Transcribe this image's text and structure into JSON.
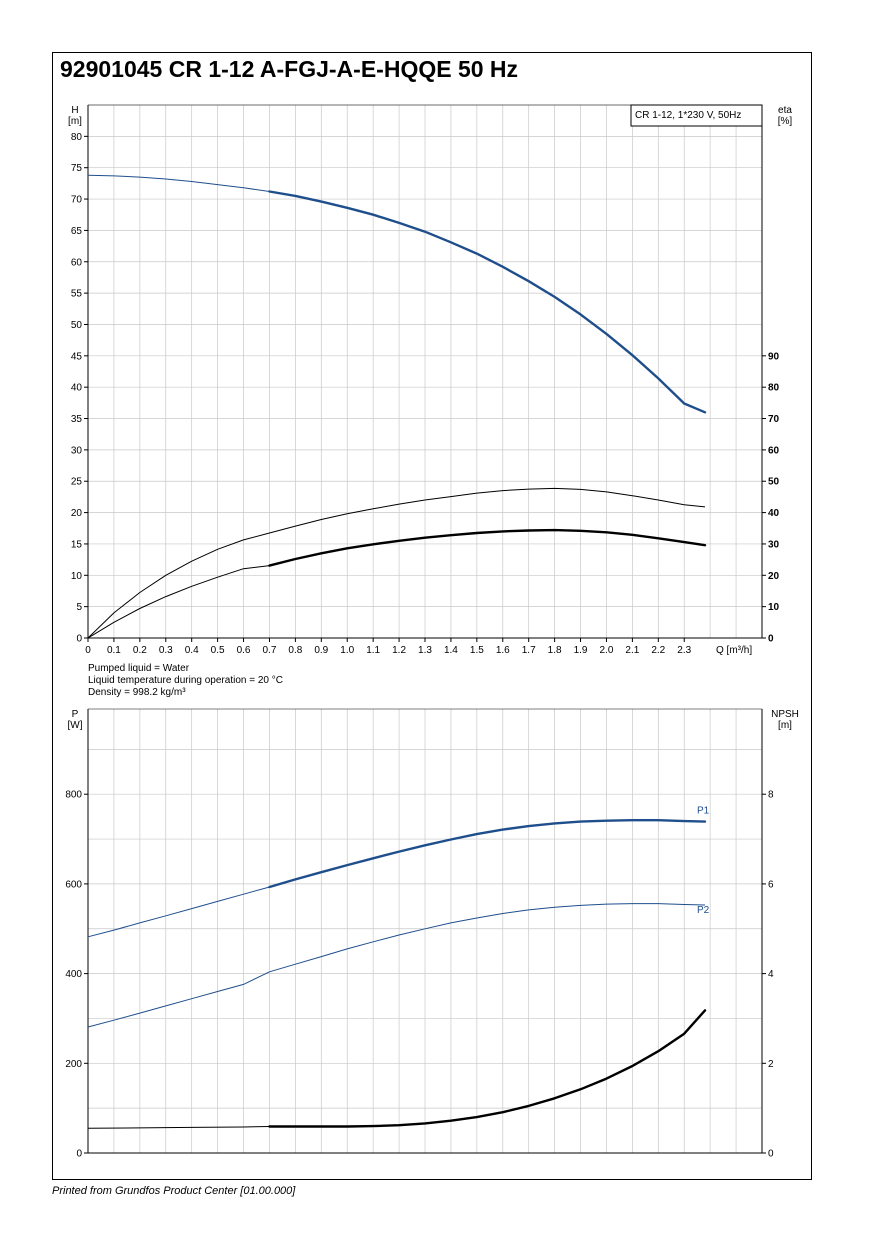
{
  "page": {
    "title": "92901045 CR 1-12 A-FGJ-A-E-HQQE 50 Hz",
    "footer": "Printed from Grundfos Product Center [01.00.000]",
    "conditions": [
      "Pumped liquid = Water",
      "Liquid temperature during operation = 20 °C",
      "Density = 998.2 kg/m³"
    ]
  },
  "colors": {
    "blue": "#1f4e8c",
    "black": "#000000",
    "grid": "#c8c8c8"
  },
  "chart_data": [
    {
      "type": "line",
      "legend": "CR 1-12, 1*230 V, 50Hz",
      "legend_position": "top-right",
      "grid": true,
      "x_label": "Q [m³/h]",
      "x_lim": [
        0,
        2.4
      ],
      "x_ticks": [
        "0",
        "0.1",
        "0.2",
        "0.3",
        "0.4",
        "0.5",
        "0.6",
        "0.7",
        "0.8",
        "0.9",
        "1.0",
        "1.1",
        "1.2",
        "1.3",
        "1.4",
        "1.5",
        "1.6",
        "1.7",
        "1.8",
        "1.9",
        "2.0",
        "2.1",
        "2.2",
        "2.3"
      ],
      "y_label_top": "H",
      "y_label_unit": "[m]",
      "y_lim": [
        0,
        85
      ],
      "y_ticks": [
        "0",
        "5",
        "10",
        "15",
        "20",
        "25",
        "30",
        "35",
        "40",
        "45",
        "50",
        "55",
        "60",
        "65",
        "70",
        "75",
        "80"
      ],
      "y2_label_top": "eta",
      "y2_label_unit": "[%]",
      "y2_lim": [
        0,
        170
      ],
      "y2_ticks": [
        "0",
        "10",
        "20",
        "30",
        "40",
        "50",
        "60",
        "70",
        "80",
        "90"
      ],
      "series": [
        {
          "key": "head",
          "axis": "y",
          "color": "blue",
          "operating_from": 0.7,
          "points": [
            [
              0,
              73.8
            ],
            [
              0.1,
              73.7
            ],
            [
              0.2,
              73.5
            ],
            [
              0.3,
              73.2
            ],
            [
              0.4,
              72.8
            ],
            [
              0.5,
              72.3
            ],
            [
              0.6,
              71.8
            ],
            [
              0.7,
              71.2
            ],
            [
              0.8,
              70.5
            ],
            [
              0.9,
              69.6
            ],
            [
              1.0,
              68.6
            ],
            [
              1.1,
              67.5
            ],
            [
              1.2,
              66.2
            ],
            [
              1.3,
              64.8
            ],
            [
              1.4,
              63.1
            ],
            [
              1.5,
              61.3
            ],
            [
              1.6,
              59.2
            ],
            [
              1.7,
              56.9
            ],
            [
              1.8,
              54.4
            ],
            [
              1.9,
              51.6
            ],
            [
              2.0,
              48.5
            ],
            [
              2.1,
              45.1
            ],
            [
              2.2,
              41.4
            ],
            [
              2.3,
              37.4
            ],
            [
              2.38,
              36.0
            ]
          ]
        },
        {
          "key": "eta_total",
          "axis": "y2",
          "color": "black",
          "operating_from": 0.7,
          "points": [
            [
              0,
              0
            ],
            [
              0.1,
              5
            ],
            [
              0.2,
              9.4
            ],
            [
              0.3,
              13.2
            ],
            [
              0.4,
              16.5
            ],
            [
              0.5,
              19.4
            ],
            [
              0.6,
              22.1
            ],
            [
              0.7,
              23.1
            ],
            [
              0.8,
              25.2
            ],
            [
              0.9,
              27.0
            ],
            [
              1.0,
              28.6
            ],
            [
              1.1,
              29.9
            ],
            [
              1.2,
              31.0
            ],
            [
              1.3,
              32.0
            ],
            [
              1.4,
              32.8
            ],
            [
              1.5,
              33.5
            ],
            [
              1.6,
              34.0
            ],
            [
              1.7,
              34.3
            ],
            [
              1.8,
              34.4
            ],
            [
              1.9,
              34.2
            ],
            [
              2.0,
              33.7
            ],
            [
              2.1,
              32.9
            ],
            [
              2.2,
              31.8
            ],
            [
              2.3,
              30.6
            ],
            [
              2.38,
              29.6
            ]
          ]
        },
        {
          "key": "eta_pump",
          "axis": "y2",
          "color": "black",
          "operating_from": 2.39,
          "points": [
            [
              0,
              0
            ],
            [
              0.1,
              8
            ],
            [
              0.2,
              14.5
            ],
            [
              0.3,
              20
            ],
            [
              0.4,
              24.5
            ],
            [
              0.5,
              28.3
            ],
            [
              0.6,
              31.3
            ],
            [
              0.7,
              33.5
            ],
            [
              0.8,
              35.7
            ],
            [
              0.9,
              37.8
            ],
            [
              1.0,
              39.6
            ],
            [
              1.1,
              41.2
            ],
            [
              1.2,
              42.7
            ],
            [
              1.3,
              44.0
            ],
            [
              1.4,
              45.1
            ],
            [
              1.5,
              46.2
            ],
            [
              1.6,
              47.0
            ],
            [
              1.7,
              47.5
            ],
            [
              1.8,
              47.7
            ],
            [
              1.9,
              47.4
            ],
            [
              2.0,
              46.6
            ],
            [
              2.1,
              45.4
            ],
            [
              2.2,
              44.0
            ],
            [
              2.3,
              42.5
            ],
            [
              2.38,
              41.8
            ]
          ]
        }
      ]
    },
    {
      "type": "line",
      "grid": true,
      "y_label_top": "P",
      "y_label_unit": "[W]",
      "y_lim": [
        0,
        990
      ],
      "y_ticks": [
        "0",
        "200",
        "400",
        "600",
        "800"
      ],
      "y2_label_top": "NPSH",
      "y2_label_unit": "[m]",
      "y2_lim": [
        0,
        9.9
      ],
      "y2_ticks": [
        "0",
        "2",
        "4",
        "6",
        "8"
      ],
      "x_lim": [
        0,
        2.4
      ],
      "series": [
        {
          "key": "p1",
          "name": "P1",
          "axis": "y",
          "color": "blue",
          "operating_from": 0.7,
          "points": [
            [
              0,
              482
            ],
            [
              0.1,
              497
            ],
            [
              0.2,
              513
            ],
            [
              0.3,
              529
            ],
            [
              0.4,
              545
            ],
            [
              0.5,
              561
            ],
            [
              0.6,
              577
            ],
            [
              0.7,
              593
            ],
            [
              0.8,
              610
            ],
            [
              0.9,
              626
            ],
            [
              1.0,
              642
            ],
            [
              1.1,
              657
            ],
            [
              1.2,
              672
            ],
            [
              1.3,
              686
            ],
            [
              1.4,
              699
            ],
            [
              1.5,
              711
            ],
            [
              1.6,
              721
            ],
            [
              1.7,
              729
            ],
            [
              1.8,
              735
            ],
            [
              1.9,
              739
            ],
            [
              2.0,
              741
            ],
            [
              2.1,
              742
            ],
            [
              2.2,
              742
            ],
            [
              2.3,
              740
            ],
            [
              2.38,
              739
            ]
          ]
        },
        {
          "key": "p2",
          "name": "P2",
          "axis": "y",
          "color": "blue",
          "operating_from": 2.39,
          "points": [
            [
              0,
              281
            ],
            [
              0.1,
              296
            ],
            [
              0.2,
              312
            ],
            [
              0.3,
              328
            ],
            [
              0.4,
              344
            ],
            [
              0.5,
              360
            ],
            [
              0.6,
              376
            ],
            [
              0.7,
              404
            ],
            [
              0.8,
              421
            ],
            [
              0.9,
              438
            ],
            [
              1.0,
              455
            ],
            [
              1.1,
              471
            ],
            [
              1.2,
              486
            ],
            [
              1.3,
              500
            ],
            [
              1.4,
              513
            ],
            [
              1.5,
              524
            ],
            [
              1.6,
              534
            ],
            [
              1.7,
              542
            ],
            [
              1.8,
              548
            ],
            [
              1.9,
              552
            ],
            [
              2.0,
              555
            ],
            [
              2.1,
              556
            ],
            [
              2.2,
              556
            ],
            [
              2.3,
              554
            ],
            [
              2.38,
              553
            ]
          ]
        },
        {
          "key": "npsh",
          "axis": "y2",
          "color": "black",
          "operating_from": 0.7,
          "points": [
            [
              0,
              0.55
            ],
            [
              0.2,
              0.56
            ],
            [
              0.4,
              0.57
            ],
            [
              0.6,
              0.58
            ],
            [
              0.7,
              0.59
            ],
            [
              0.8,
              0.59
            ],
            [
              0.9,
              0.59
            ],
            [
              1.0,
              0.59
            ],
            [
              1.1,
              0.6
            ],
            [
              1.2,
              0.62
            ],
            [
              1.3,
              0.66
            ],
            [
              1.4,
              0.72
            ],
            [
              1.5,
              0.8
            ],
            [
              1.6,
              0.91
            ],
            [
              1.7,
              1.05
            ],
            [
              1.8,
              1.22
            ],
            [
              1.9,
              1.42
            ],
            [
              2.0,
              1.66
            ],
            [
              2.1,
              1.94
            ],
            [
              2.2,
              2.27
            ],
            [
              2.3,
              2.66
            ],
            [
              2.38,
              3.18
            ]
          ]
        }
      ]
    }
  ]
}
